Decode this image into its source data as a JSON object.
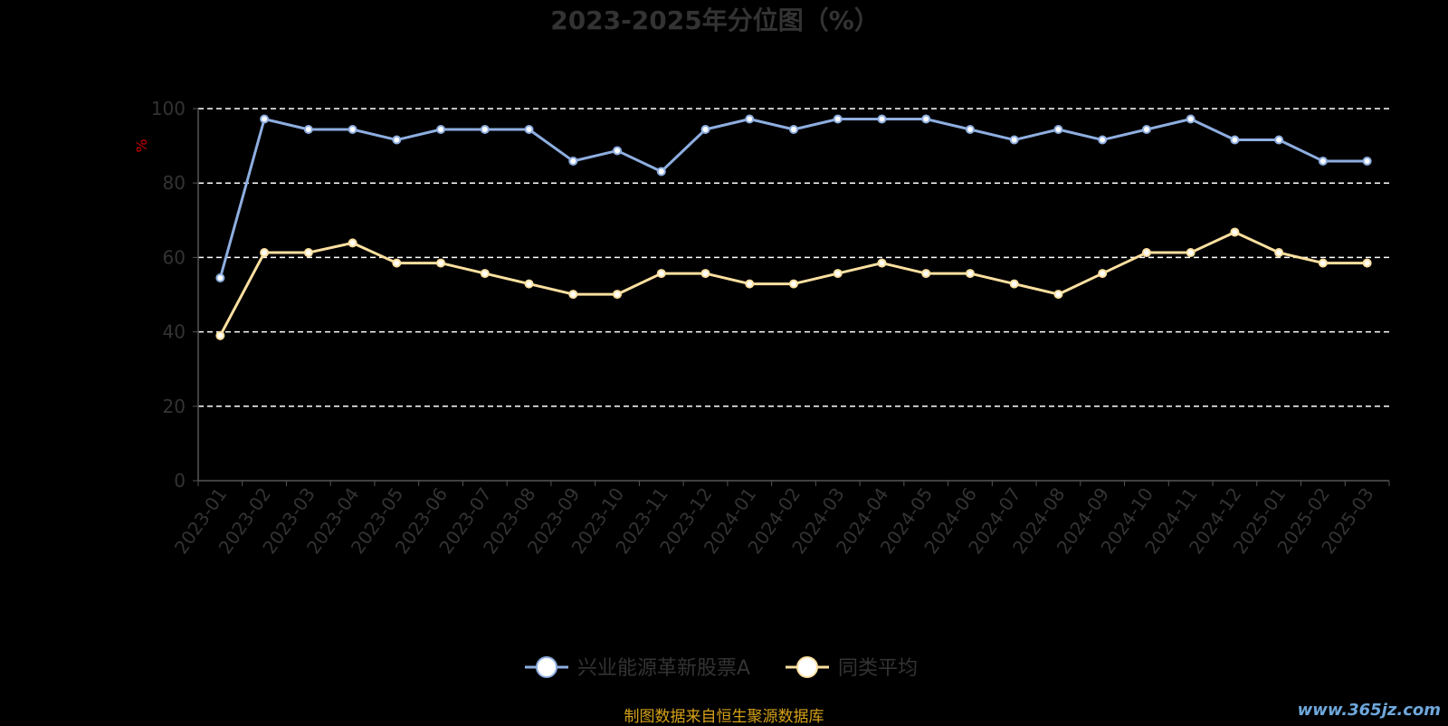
{
  "chart_data": {
    "type": "line",
    "title": "2023-2025年分位图（%）",
    "ylabel": "%",
    "ylim": [
      0,
      100
    ],
    "yticks": [
      0,
      20,
      40,
      60,
      80,
      100
    ],
    "grid": "horizontal-dashed",
    "legend_position": "bottom-center",
    "categories": [
      "2023-01",
      "2023-02",
      "2023-03",
      "2023-04",
      "2023-05",
      "2023-06",
      "2023-07",
      "2023-08",
      "2023-09",
      "2023-10",
      "2023-11",
      "2023-12",
      "2024-01",
      "2024-02",
      "2024-03",
      "2024-04",
      "2024-05",
      "2024-06",
      "2024-07",
      "2024-08",
      "2024-09",
      "2024-10",
      "2024-11",
      "2024-12",
      "2025-01",
      "2025-02",
      "2025-03"
    ],
    "series": [
      {
        "name": "兴业能源革新股票A",
        "color": "#8eaee0",
        "values": [
          54.5,
          97.2,
          94.4,
          94.4,
          91.6,
          94.4,
          94.4,
          94.4,
          85.9,
          88.7,
          83.1,
          94.4,
          97.2,
          94.4,
          97.2,
          97.2,
          97.2,
          94.4,
          91.6,
          94.4,
          91.6,
          94.4,
          97.2,
          91.6,
          91.6,
          85.9,
          85.9
        ]
      },
      {
        "name": "同类平均",
        "color": "#fce0a0",
        "values": [
          39.0,
          61.3,
          61.3,
          63.9,
          58.5,
          58.5,
          55.7,
          52.9,
          50.1,
          50.1,
          55.7,
          55.7,
          52.9,
          52.9,
          55.7,
          58.5,
          55.7,
          55.7,
          52.9,
          50.1,
          55.7,
          61.3,
          61.3,
          66.8,
          61.3,
          58.5,
          58.5
        ]
      }
    ]
  },
  "source_text": "制图数据来自恒生聚源数据库",
  "watermark_text": "www.365jz.com"
}
